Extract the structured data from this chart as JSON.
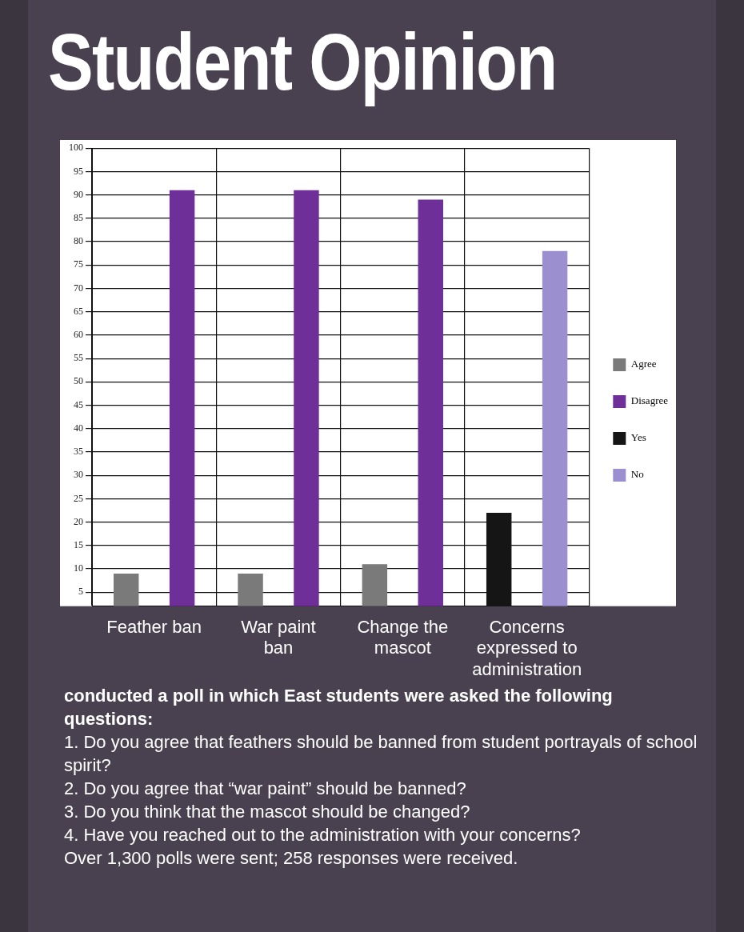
{
  "chart_data": {
    "type": "bar",
    "title": "Student Opinion",
    "categories": [
      "Feather ban",
      "War paint ban",
      "Change the mascot",
      "Concerns expressed to administration"
    ],
    "series": [
      {
        "name": "Agree",
        "color": "#7a7a7a",
        "values": [
          9,
          9,
          11,
          null
        ]
      },
      {
        "name": "Disagree",
        "color": "#6f2f98",
        "values": [
          91,
          91,
          89,
          null
        ]
      },
      {
        "name": "Yes",
        "color": "#151515",
        "values": [
          null,
          null,
          null,
          22
        ]
      },
      {
        "name": "No",
        "color": "#9b8fcf",
        "values": [
          null,
          null,
          null,
          78
        ]
      }
    ],
    "ylim": [
      2,
      100
    ],
    "yticks": [
      5,
      10,
      15,
      20,
      25,
      30,
      35,
      40,
      45,
      50,
      55,
      60,
      65,
      70,
      75,
      80,
      85,
      90,
      95,
      100
    ],
    "grid": true,
    "legend": "right",
    "annotations": [
      "conducted a poll in which East students were asked the following questions:",
      "1. Do you agree that feathers should be banned from student portrayals of school spirit?",
      "2. Do you agree that “war paint” should be banned?",
      "3. Do you think that the mascot should be changed?",
      "4. Have you reached out to the administration with your concerns?",
      "Over 1,300 polls were sent; 258 responses were received."
    ]
  }
}
